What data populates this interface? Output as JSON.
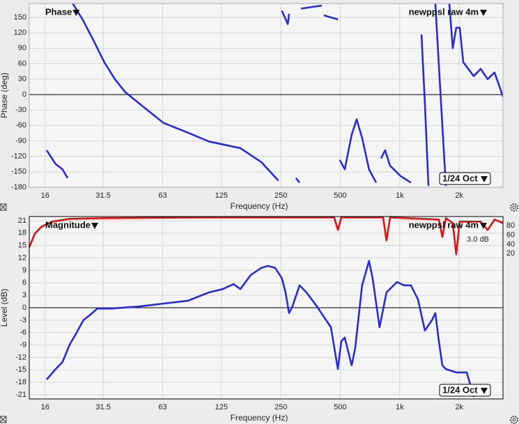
{
  "chart_data": [
    {
      "type": "line",
      "selector": "Phase",
      "resolution": "1/24 Oct",
      "xlabel": "Frequency (Hz)",
      "ylabel": "Phase (deg)",
      "xscale": "log",
      "grid": true,
      "xlim": [
        13.3,
        3333
      ],
      "xticks": [
        16,
        31.5,
        63,
        125,
        250,
        500,
        {
          "value": 1000,
          "label": "1k"
        },
        {
          "value": 2000,
          "label": "2k"
        }
      ],
      "ylim": [
        -180,
        177
      ],
      "yticks": [
        -180,
        -150,
        -120,
        -90,
        -60,
        -30,
        0,
        30,
        60,
        90,
        120,
        150
      ],
      "x": [
        16.3,
        18.1,
        19.6,
        20.8,
        21.5,
        22.1,
        25.0,
        28.3,
        31.9,
        36.1,
        40.7,
        47.9,
        63.7,
        84.6,
        108,
        156,
        199,
        243,
        248,
        253,
        271,
        275,
        290,
        298,
        311,
        314,
        316,
        403,
        408,
        413,
        486,
        492,
        497,
        527,
        571,
        605,
        645,
        699,
        759,
        780,
        804,
        843,
        893,
        1008,
        1140,
        1200,
        1288,
        1341,
        1397,
        1450,
        1515,
        1604,
        1712,
        1750,
        1783,
        1856,
        1933,
        2013,
        2097,
        2370,
        2570,
        2787,
        3022,
        3333
      ],
      "series": [
        {
          "name": "newppsl raw 4m",
          "color": "#2a2ad8",
          "values": [
            -108,
            -135,
            -145,
            -162,
            null,
            177,
            143,
            103,
            63,
            30,
            5,
            -17,
            -55,
            -74,
            -91,
            -104,
            -131,
            -167,
            null,
            163,
            137,
            157,
            null,
            -162,
            -171,
            null,
            167,
            173,
            null,
            154,
            146,
            null,
            -127,
            -145,
            -78,
            -48,
            -84,
            -145,
            -171,
            null,
            -124,
            -108,
            -138,
            -158,
            -171,
            null,
            117,
            -17,
            -177,
            null,
            177,
            9,
            -177,
            null,
            177,
            90,
            130,
            130,
            63,
            36,
            50,
            30,
            43,
            -4
          ]
        }
      ]
    },
    {
      "type": "line",
      "selector": "Magnitude",
      "resolution": "1/24 Oct",
      "annotation": "3.0 dB",
      "xlabel": "Frequency (Hz)",
      "ylabel": "Level (dB)",
      "xscale": "log",
      "grid": true,
      "xlim": [
        13.3,
        3333
      ],
      "xticks": [
        16,
        31.5,
        63,
        125,
        250,
        500,
        {
          "value": 1000,
          "label": "1k"
        },
        {
          "value": 2000,
          "label": "2k"
        }
      ],
      "ylim": [
        -22,
        22
      ],
      "yticks": [
        -21,
        -18,
        -15,
        -12,
        -9,
        -6,
        -3,
        0,
        3,
        6,
        9,
        12,
        15,
        18,
        21
      ],
      "y2lim": [
        -294,
        100
      ],
      "y2ticks": [
        20,
        40,
        60,
        80
      ],
      "series": [
        {
          "name": "newppsl raw 4m",
          "color": "#2a2ad8",
          "x": [
            16.3,
            18.1,
            19.6,
            21.3,
            23.1,
            25.0,
            27.1,
            29.4,
            34.6,
            47.9,
            63.7,
            84.6,
            108,
            127,
            144,
            156,
            176,
            199,
            215,
            234,
            253,
            264,
            275,
            286,
            311,
            337,
            381,
            413,
            448,
            486,
            506,
            527,
            571,
            595,
            645,
            699,
            729,
            790,
            857,
            969,
            1052,
            1140,
            1237,
            1341,
            1455,
            1515,
            1579,
            1644,
            1712,
            1933,
            2184,
            2370
          ],
          "values": [
            -17.3,
            -14.8,
            -13.1,
            -8.9,
            -6.0,
            -3.0,
            -1.7,
            -0.2,
            -0.2,
            0.3,
            1.0,
            1.7,
            3.7,
            4.5,
            5.7,
            4.5,
            7.9,
            9.6,
            10.1,
            9.6,
            7.1,
            3.7,
            -1.3,
            0.3,
            5.4,
            3.7,
            0.3,
            -2.2,
            -4.7,
            -14.8,
            -8.1,
            -7.2,
            -13.9,
            -9.7,
            5.4,
            11.3,
            7.1,
            -4.7,
            3.7,
            6.2,
            5.4,
            5.4,
            2.0,
            -5.5,
            -3.0,
            -1.3,
            -8.1,
            -13.9,
            -14.8,
            -15.6,
            -15.6,
            -21.5
          ]
        },
        {
          "color": "#dd1111",
          "axis": "y2",
          "x": [
            13.3,
            14.2,
            15.4,
            17.4,
            21.3,
            31.9,
            108,
            466,
            486,
            506,
            824,
            857,
            893,
            1579,
            1644,
            1712,
            1856,
            1933,
            2013,
            2570,
            2787,
            3022,
            3333
          ],
          "values": [
            33.4,
            63.5,
            78.5,
            89,
            95,
            96.5,
            98,
            98,
            71,
            98,
            98,
            48.4,
            98,
            93.5,
            56,
            96.5,
            86,
            18.3,
            89,
            89,
            71,
            93.5,
            86
          ]
        }
      ]
    }
  ]
}
